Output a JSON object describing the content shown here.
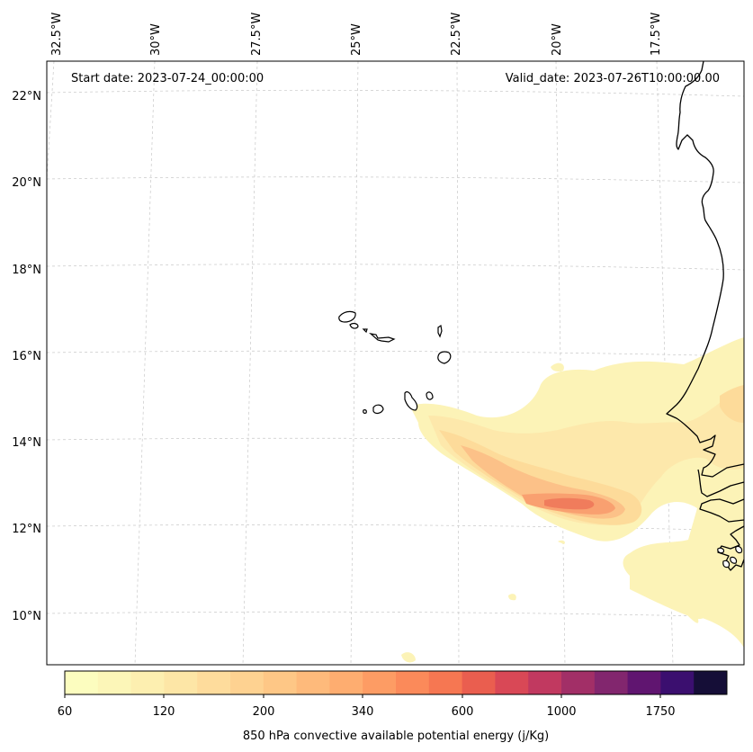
{
  "map": {
    "start_date": "Start date: 2023-07-24_00:00:00",
    "valid_date": "Valid_date: 2023-07-26T10:00:00.00",
    "lon_labels": [
      "32.5°W",
      "30°W",
      "27.5°W",
      "25°W",
      "22.5°W",
      "20°W",
      "17.5°W"
    ],
    "lat_labels": [
      "22°N",
      "20°N",
      "18°N",
      "16°N",
      "14°N",
      "12°N",
      "10°N"
    ]
  },
  "colorbar": {
    "title": "850 hPa convective available potential energy (j/Kg)",
    "tick_labels": [
      "60",
      "120",
      "200",
      "340",
      "600",
      "1000",
      "1750"
    ],
    "colors": [
      "#fcfdbf",
      "#fcf6b8",
      "#fdefb0",
      "#fde6a6",
      "#fedc9c",
      "#fed291",
      "#fec786",
      "#feba7b",
      "#fead70",
      "#fd9c64",
      "#fb8a5a",
      "#f67752",
      "#ea5e4f",
      "#d94856",
      "#c13960",
      "#a22f67",
      "#82266e",
      "#601570",
      "#3b0f6f",
      "#150e37"
    ]
  },
  "field": {
    "layers": [
      {
        "level": "60",
        "color": "#fcf3b7"
      },
      {
        "level": "120",
        "color": "#fde8ab"
      },
      {
        "level": "200",
        "color": "#fddb9a"
      },
      {
        "level": "340",
        "color": "#fcc188"
      },
      {
        "level": "600",
        "color": "#f9a070"
      },
      {
        "level": "1000",
        "color": "#f07c5c"
      }
    ]
  }
}
